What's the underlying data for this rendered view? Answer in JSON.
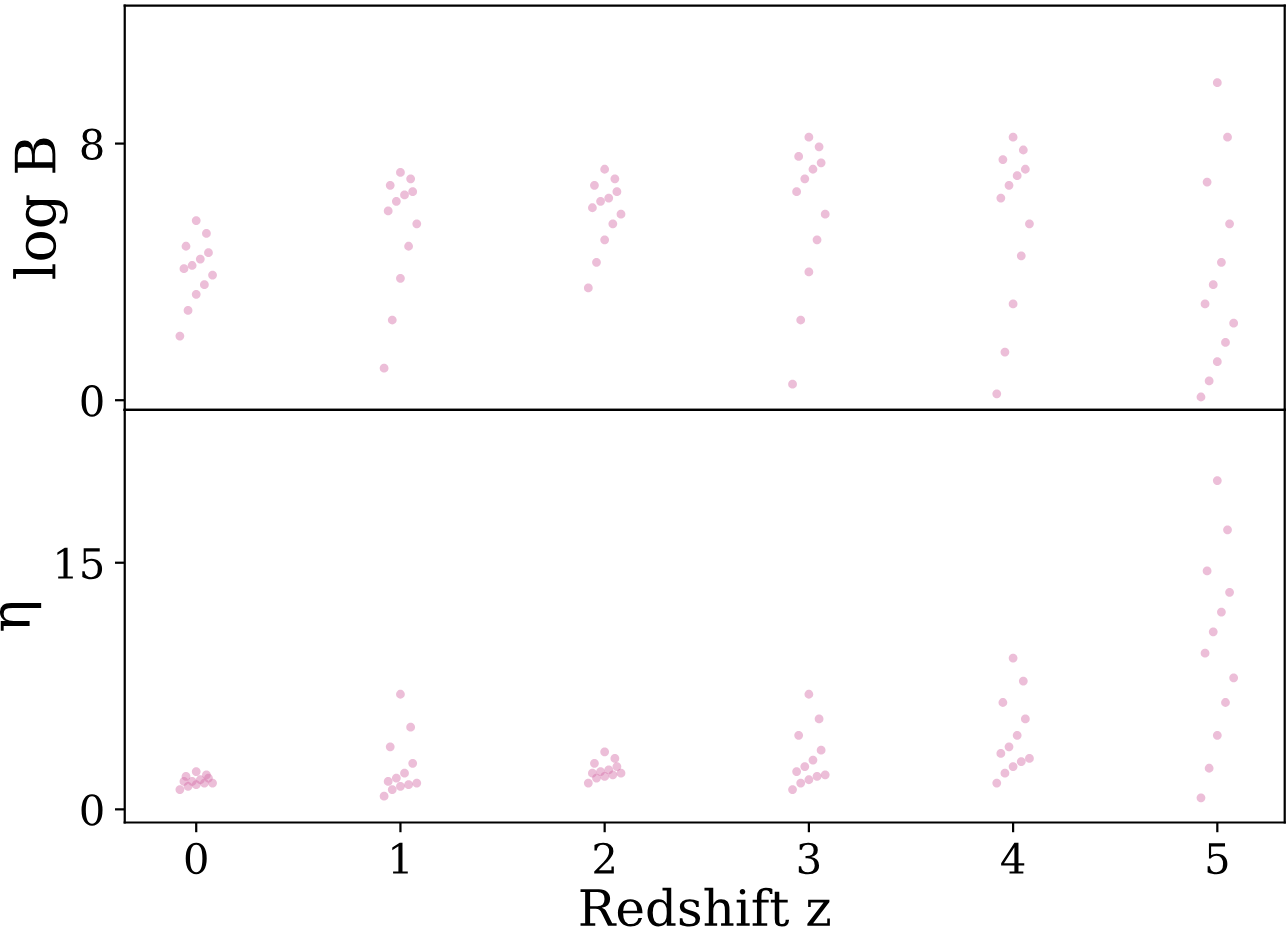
{
  "chart_data": [
    {
      "type": "scatter",
      "ylabel": "log B",
      "xlim": [
        -0.35,
        5.33
      ],
      "ylim": [
        -0.3,
        12.3
      ],
      "yticks": [
        0,
        8
      ],
      "tick_labels": "y",
      "marker": "circle",
      "grid": false,
      "series": [
        {
          "color": "#d46fa8",
          "x": [
            -0.08,
            -0.04,
            0,
            0.04,
            0.08,
            -0.06,
            -0.02,
            0.02,
            0.06,
            -0.05,
            0.05,
            0,
            0.92,
            0.96,
            1,
            1.04,
            1.08,
            0.94,
            0.98,
            1.02,
            1.06,
            0.95,
            1.05,
            1,
            1.92,
            1.96,
            2,
            2.04,
            2.08,
            1.94,
            1.98,
            2.02,
            2.06,
            1.95,
            2.05,
            2,
            2.92,
            2.96,
            3,
            3.04,
            3.08,
            2.94,
            2.98,
            3.02,
            3.06,
            2.95,
            3.05,
            3,
            3.92,
            3.96,
            4,
            4.04,
            4.08,
            3.94,
            3.98,
            4.02,
            4.06,
            3.95,
            4.05,
            4,
            4.92,
            4.96,
            5,
            5.04,
            5.08,
            4.94,
            4.98,
            5.02,
            5.06,
            4.95,
            5.05,
            5
          ],
          "values": [
            2.0,
            2.8,
            3.3,
            3.6,
            3.9,
            4.1,
            4.2,
            4.4,
            4.6,
            4.8,
            5.2,
            5.6,
            1.0,
            2.5,
            3.8,
            4.8,
            5.5,
            5.9,
            6.2,
            6.4,
            6.5,
            6.7,
            6.9,
            7.1,
            3.5,
            4.3,
            5.0,
            5.5,
            5.8,
            6.0,
            6.2,
            6.3,
            6.5,
            6.7,
            6.9,
            7.2,
            0.5,
            2.5,
            4.0,
            5.0,
            5.8,
            6.5,
            6.9,
            7.2,
            7.4,
            7.6,
            7.9,
            8.2,
            0.2,
            1.5,
            3.0,
            4.5,
            5.5,
            6.3,
            6.7,
            7.0,
            7.2,
            7.5,
            7.8,
            8.2,
            0.1,
            0.6,
            1.2,
            1.8,
            2.4,
            3.0,
            3.6,
            4.3,
            5.5,
            6.8,
            8.2,
            9.9
          ]
        }
      ]
    },
    {
      "type": "scatter",
      "xlabel": "Redshift z",
      "ylabel": "η",
      "xlim": [
        -0.35,
        5.33
      ],
      "xticks": [
        0,
        1,
        2,
        3,
        4,
        5
      ],
      "ylim": [
        -0.8,
        24.3
      ],
      "yticks": [
        0,
        15
      ],
      "marker": "circle",
      "grid": false,
      "series": [
        {
          "color": "#d46fa8",
          "x": [
            -0.08,
            -0.04,
            0,
            0.04,
            0.08,
            -0.06,
            -0.02,
            0.02,
            0.06,
            -0.05,
            0.05,
            0,
            0.92,
            0.96,
            1,
            1.04,
            1.08,
            0.94,
            0.98,
            1.02,
            1.06,
            0.95,
            1.05,
            1,
            1.92,
            1.96,
            2,
            2.04,
            2.08,
            1.94,
            1.98,
            2.02,
            2.06,
            1.95,
            2.05,
            2,
            2.92,
            2.96,
            3,
            3.04,
            3.08,
            2.94,
            2.98,
            3.02,
            3.06,
            2.95,
            3.05,
            3,
            3.92,
            3.96,
            4,
            4.04,
            4.08,
            3.94,
            3.98,
            4.02,
            4.06,
            3.95,
            4.05,
            4,
            4.92,
            4.96,
            5,
            5.04,
            5.08,
            4.94,
            4.98,
            5.02,
            5.06,
            4.95,
            5.05,
            5
          ],
          "values": [
            1.2,
            1.4,
            1.5,
            1.6,
            1.6,
            1.7,
            1.7,
            1.8,
            1.9,
            2.0,
            2.1,
            2.3,
            0.8,
            1.2,
            1.4,
            1.5,
            1.6,
            1.7,
            1.9,
            2.2,
            2.8,
            3.8,
            5.0,
            7.0,
            1.6,
            1.9,
            2.0,
            2.1,
            2.2,
            2.2,
            2.3,
            2.4,
            2.6,
            2.8,
            3.1,
            3.5,
            1.2,
            1.6,
            1.8,
            2.0,
            2.1,
            2.3,
            2.6,
            3.0,
            3.6,
            4.5,
            5.5,
            7.0,
            1.6,
            2.2,
            2.6,
            2.9,
            3.1,
            3.4,
            3.8,
            4.5,
            5.5,
            6.5,
            7.8,
            9.2,
            0.7,
            2.5,
            4.5,
            6.5,
            8.0,
            9.5,
            10.8,
            12.0,
            13.2,
            14.5,
            17.0,
            20.0
          ]
        }
      ]
    }
  ]
}
